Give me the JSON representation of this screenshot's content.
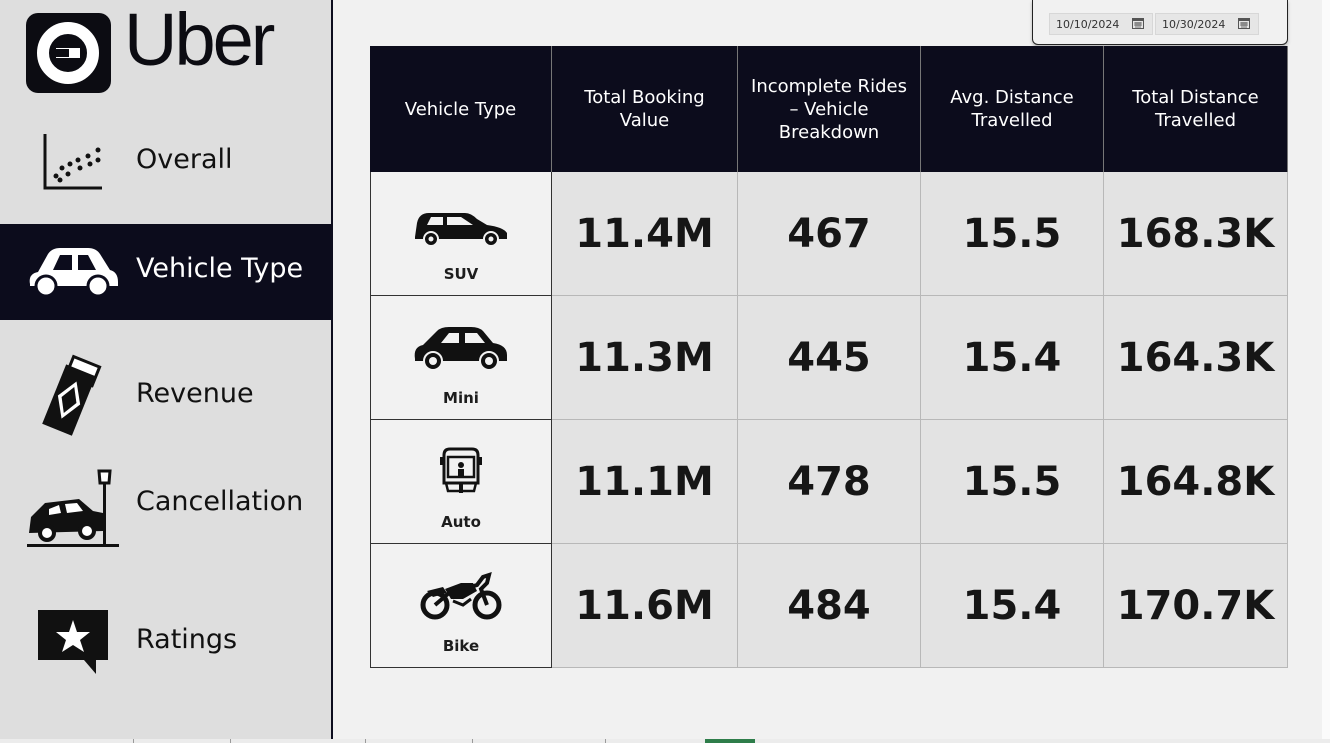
{
  "brand": {
    "name": "Uber"
  },
  "nav": {
    "items": [
      {
        "key": "overall",
        "label": "Overall",
        "icon": "scatter-chart-icon",
        "active": false
      },
      {
        "key": "vehicle",
        "label": "Vehicle Type",
        "icon": "car-icon",
        "active": true
      },
      {
        "key": "revenue",
        "label": "Revenue",
        "icon": "money-bundle-icon",
        "active": false
      },
      {
        "key": "cancellation",
        "label": "Cancellation",
        "icon": "car-crash-icon",
        "active": false
      },
      {
        "key": "ratings",
        "label": "Ratings",
        "icon": "star-speech-bubble-icon",
        "active": false
      }
    ]
  },
  "date_filter": {
    "start": "10/10/2024",
    "end": "10/30/2024",
    "icon": "calendar-icon"
  },
  "table": {
    "headers": [
      "Vehicle Type",
      "Total Booking Value",
      "Incomplete Rides – Vehicle Breakdown",
      "Avg. Distance Travelled",
      "Total Distance Travelled"
    ],
    "rows": [
      {
        "vehicle": "SUV",
        "icon": "suv-icon",
        "booking_value": "11.4M",
        "incomplete": "467",
        "avg_distance": "15.5",
        "total_distance": "168.3K"
      },
      {
        "vehicle": "Mini",
        "icon": "sedan-icon",
        "booking_value": "11.3M",
        "incomplete": "445",
        "avg_distance": "15.4",
        "total_distance": "164.3K"
      },
      {
        "vehicle": "Auto",
        "icon": "auto-rickshaw-icon",
        "booking_value": "11.1M",
        "incomplete": "478",
        "avg_distance": "15.5",
        "total_distance": "164.8K"
      },
      {
        "vehicle": "Bike",
        "icon": "motorbike-icon",
        "booking_value": "11.6M",
        "incomplete": "484",
        "avg_distance": "15.4",
        "total_distance": "170.7K"
      }
    ]
  },
  "colors": {
    "navy": "#0c0c1c",
    "sidebar_bg": "#dedede",
    "page_bg": "#f1f1f1",
    "cell_bg": "#e3e3e3",
    "active_sheet_tab": "#2e7d4a"
  }
}
